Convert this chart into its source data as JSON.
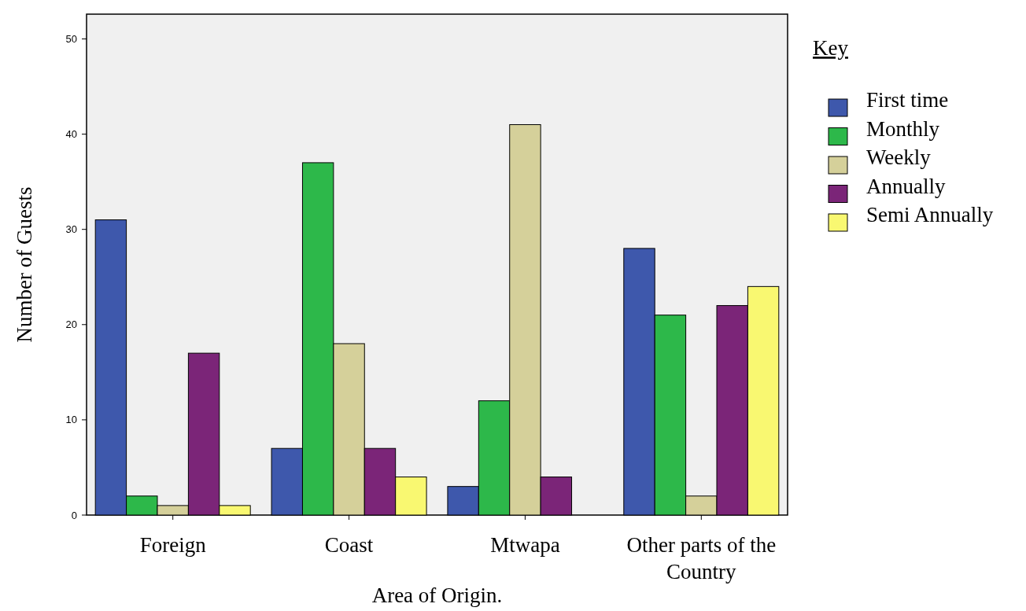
{
  "chart_data": {
    "type": "bar",
    "xlabel": "Area of Origin.",
    "ylabel": "Number of Guests",
    "legend_title": "Key",
    "legend": "right",
    "categories": [
      "Foreign",
      "Coast",
      "Mtwapa",
      "Other parts of the Country"
    ],
    "series": [
      {
        "name": "First time",
        "color": "#3e58ac",
        "values": [
          31,
          7,
          3,
          28
        ]
      },
      {
        "name": "Monthly",
        "color": "#2db84a",
        "values": [
          2,
          37,
          12,
          21
        ]
      },
      {
        "name": "Weekly",
        "color": "#d5d09a",
        "values": [
          1,
          18,
          41,
          2
        ]
      },
      {
        "name": "Annually",
        "color": "#7b2578",
        "values": [
          17,
          7,
          4,
          22
        ]
      },
      {
        "name": "Semi Annually",
        "color": "#f9f871",
        "values": [
          1,
          4,
          0,
          24
        ]
      }
    ],
    "ylim": [
      0,
      52.6
    ],
    "yticks": [
      0,
      10,
      20,
      30,
      40,
      50
    ]
  }
}
